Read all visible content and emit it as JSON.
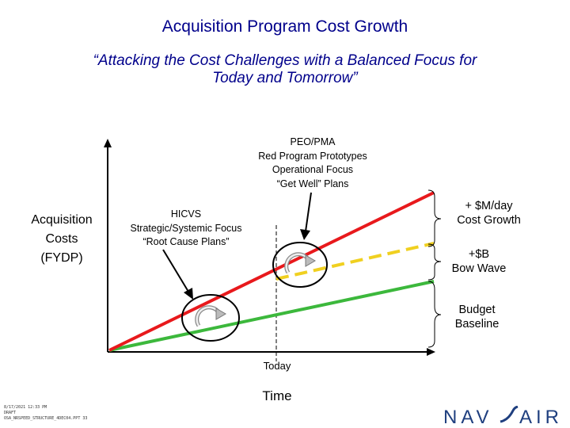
{
  "title": "Acquisition Program Cost Growth",
  "subtitle": [
    "“Attacking the Cost Challenges with a Balanced Focus for",
    "Today and Tomorrow”"
  ],
  "y_axis_label": [
    "Acquisition",
    "Costs",
    "(FYDP)"
  ],
  "x_axis_label": "Time",
  "today_label": "Today",
  "annotations": {
    "peo": [
      "PEO/PMA",
      "Red Program Prototypes",
      "Operational Focus",
      "“Get Well” Plans"
    ],
    "hicvs": [
      "HICVS",
      "Strategic/Systemic Focus",
      "“Root Cause Plans”"
    ]
  },
  "brace_labels": {
    "cost_growth": [
      "+ $M/day",
      "Cost Growth"
    ],
    "bow_wave": [
      "+$B",
      "Bow Wave"
    ],
    "budget_baseline": [
      "Budget",
      "Baseline"
    ]
  },
  "footer": [
    "8/17/2021 12:33 PM",
    "DRAFT",
    "OSA_NRSPEED_STRUCTURE_4DEC04.PPT  33"
  ],
  "logo_text": "NAVAIR",
  "colors": {
    "title": "#00008b",
    "red_line": "#e8191c",
    "green_line": "#3cb83c",
    "dashed_line": "#f0d020",
    "logo": "#1f3f7f"
  },
  "icons": [
    "cycle-arrow-icon",
    "cycle-arrow-icon"
  ]
}
